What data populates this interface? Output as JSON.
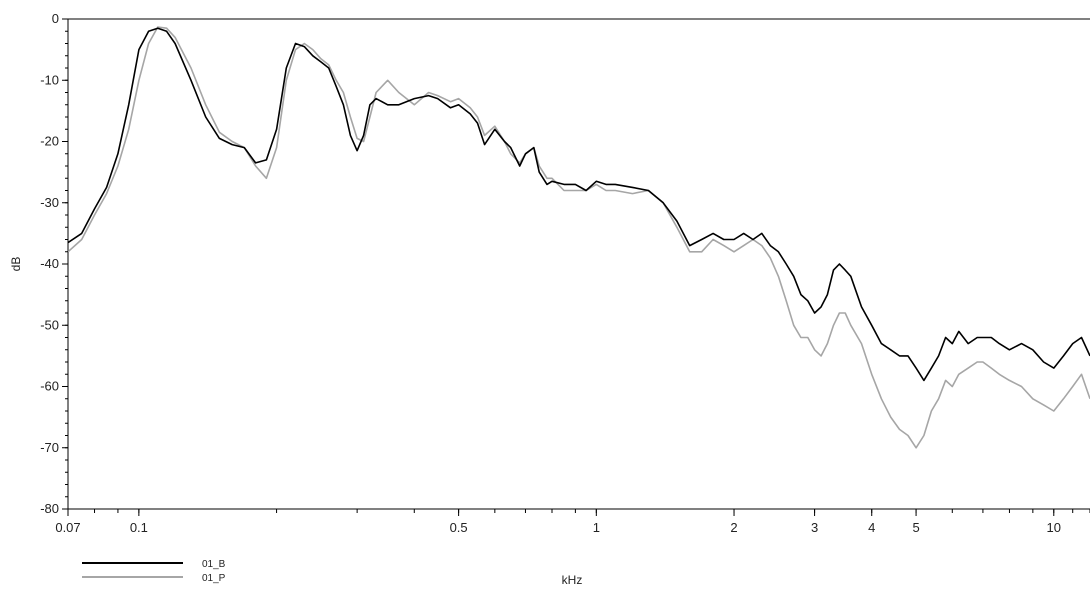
{
  "chart_data": {
    "type": "line",
    "title": "",
    "xlabel": "kHz",
    "ylabel": "dB",
    "xscale": "log",
    "xlim": [
      0.07,
      12
    ],
    "ylim": [
      -80,
      0
    ],
    "x_ticks": [
      {
        "value": 0.07,
        "label": "0.07"
      },
      {
        "value": 0.1,
        "label": "0.1"
      },
      {
        "value": 0.5,
        "label": "0.5"
      },
      {
        "value": 1,
        "label": "1"
      },
      {
        "value": 2,
        "label": "2"
      },
      {
        "value": 3,
        "label": "3"
      },
      {
        "value": 4,
        "label": "4"
      },
      {
        "value": 5,
        "label": "5"
      },
      {
        "value": 10,
        "label": "10"
      }
    ],
    "y_ticks": [
      {
        "value": 0,
        "label": "0"
      },
      {
        "value": -10,
        "label": "-10"
      },
      {
        "value": -20,
        "label": "-20"
      },
      {
        "value": -30,
        "label": "-30"
      },
      {
        "value": -40,
        "label": "-40"
      },
      {
        "value": -50,
        "label": "-50"
      },
      {
        "value": -60,
        "label": "-60"
      },
      {
        "value": -70,
        "label": "-70"
      },
      {
        "value": -80,
        "label": "-80"
      }
    ],
    "grid": false,
    "legend_position": "bottom-left",
    "series": [
      {
        "name": "01_B",
        "color": "#000000",
        "x": [
          0.07,
          0.075,
          0.08,
          0.085,
          0.09,
          0.095,
          0.1,
          0.105,
          0.11,
          0.115,
          0.12,
          0.13,
          0.14,
          0.15,
          0.16,
          0.17,
          0.18,
          0.19,
          0.2,
          0.21,
          0.22,
          0.23,
          0.24,
          0.25,
          0.26,
          0.27,
          0.28,
          0.29,
          0.3,
          0.31,
          0.32,
          0.33,
          0.35,
          0.37,
          0.4,
          0.43,
          0.45,
          0.48,
          0.5,
          0.53,
          0.55,
          0.57,
          0.6,
          0.63,
          0.65,
          0.68,
          0.7,
          0.73,
          0.75,
          0.78,
          0.8,
          0.85,
          0.9,
          0.95,
          1.0,
          1.05,
          1.1,
          1.2,
          1.3,
          1.4,
          1.5,
          1.6,
          1.7,
          1.8,
          1.9,
          2.0,
          2.1,
          2.2,
          2.3,
          2.4,
          2.5,
          2.6,
          2.7,
          2.8,
          2.9,
          3.0,
          3.1,
          3.2,
          3.3,
          3.4,
          3.5,
          3.6,
          3.8,
          4.0,
          4.2,
          4.4,
          4.6,
          4.8,
          5.0,
          5.2,
          5.4,
          5.6,
          5.8,
          6.0,
          6.2,
          6.5,
          6.8,
          7.0,
          7.3,
          7.6,
          8.0,
          8.5,
          9.0,
          9.5,
          10.0,
          10.5,
          11.0,
          11.5,
          12.0
        ],
        "y": [
          -36.5,
          -35,
          -31,
          -27.5,
          -22,
          -14,
          -5,
          -2,
          -1.5,
          -2,
          -4,
          -10,
          -16,
          -19.5,
          -20.5,
          -21,
          -23.5,
          -23,
          -18,
          -8,
          -4,
          -4.5,
          -6,
          -7,
          -8,
          -11,
          -14,
          -19,
          -21.5,
          -19,
          -14,
          -13,
          -14,
          -14,
          -13,
          -12.5,
          -13,
          -14.5,
          -14,
          -15.5,
          -17,
          -20.5,
          -18,
          -20,
          -21,
          -24,
          -22,
          -21,
          -25,
          -27,
          -26.5,
          -27,
          -27,
          -28,
          -26.5,
          -27,
          -27,
          -27.5,
          -28,
          -30,
          -33,
          -37,
          -36,
          -35,
          -36,
          -36,
          -35,
          -36,
          -35,
          -37,
          -38,
          -40,
          -42,
          -45,
          -46,
          -48,
          -47,
          -45,
          -41,
          -40,
          -41,
          -42,
          -47,
          -50,
          -53,
          -54,
          -55,
          -55,
          -57,
          -59,
          -57,
          -55,
          -52,
          -53,
          -51,
          -53,
          -52,
          -52,
          -52,
          -53,
          -54,
          -53,
          -54,
          -56,
          -57,
          -55,
          -53,
          -52,
          -55
        ]
      },
      {
        "name": "01_P",
        "color": "#a6a6a6",
        "x": [
          0.07,
          0.075,
          0.08,
          0.085,
          0.09,
          0.095,
          0.1,
          0.105,
          0.11,
          0.115,
          0.12,
          0.13,
          0.14,
          0.15,
          0.16,
          0.17,
          0.18,
          0.19,
          0.2,
          0.21,
          0.22,
          0.23,
          0.24,
          0.25,
          0.26,
          0.27,
          0.28,
          0.29,
          0.3,
          0.31,
          0.32,
          0.33,
          0.35,
          0.37,
          0.4,
          0.43,
          0.45,
          0.48,
          0.5,
          0.53,
          0.55,
          0.57,
          0.6,
          0.63,
          0.65,
          0.68,
          0.7,
          0.73,
          0.75,
          0.78,
          0.8,
          0.85,
          0.9,
          0.95,
          1.0,
          1.05,
          1.1,
          1.2,
          1.3,
          1.4,
          1.5,
          1.6,
          1.7,
          1.8,
          1.9,
          2.0,
          2.1,
          2.2,
          2.3,
          2.4,
          2.5,
          2.6,
          2.7,
          2.8,
          2.9,
          3.0,
          3.1,
          3.2,
          3.3,
          3.4,
          3.5,
          3.6,
          3.8,
          4.0,
          4.2,
          4.4,
          4.6,
          4.8,
          5.0,
          5.2,
          5.4,
          5.6,
          5.8,
          6.0,
          6.2,
          6.5,
          6.8,
          7.0,
          7.3,
          7.6,
          8.0,
          8.5,
          9.0,
          9.5,
          10.0,
          10.5,
          11.0,
          11.5,
          12.0
        ],
        "y": [
          -38,
          -36,
          -32,
          -28.5,
          -24,
          -18,
          -10,
          -4,
          -1.3,
          -1.5,
          -3,
          -8,
          -14,
          -18.5,
          -20,
          -21,
          -24,
          -26,
          -21,
          -10,
          -5,
          -4,
          -5,
          -6.5,
          -7.5,
          -10,
          -12,
          -16,
          -19.5,
          -20,
          -16,
          -12,
          -10,
          -12,
          -14,
          -12,
          -12.5,
          -13.5,
          -13,
          -14.5,
          -16,
          -19,
          -17.5,
          -20,
          -22,
          -23.5,
          -22,
          -21,
          -24,
          -26,
          -26,
          -28,
          -28,
          -28,
          -27,
          -28,
          -28,
          -28.5,
          -28,
          -30,
          -34,
          -38,
          -38,
          -36,
          -37,
          -38,
          -37,
          -36,
          -37,
          -39,
          -42,
          -46,
          -50,
          -52,
          -52,
          -54,
          -55,
          -53,
          -50,
          -48,
          -48,
          -50,
          -53,
          -58,
          -62,
          -65,
          -67,
          -68,
          -70,
          -68,
          -64,
          -62,
          -59,
          -60,
          -58,
          -57,
          -56,
          -56,
          -57,
          -58,
          -59,
          -60,
          -62,
          -63,
          -64,
          -62,
          -60,
          -58,
          -62
        ]
      }
    ]
  }
}
